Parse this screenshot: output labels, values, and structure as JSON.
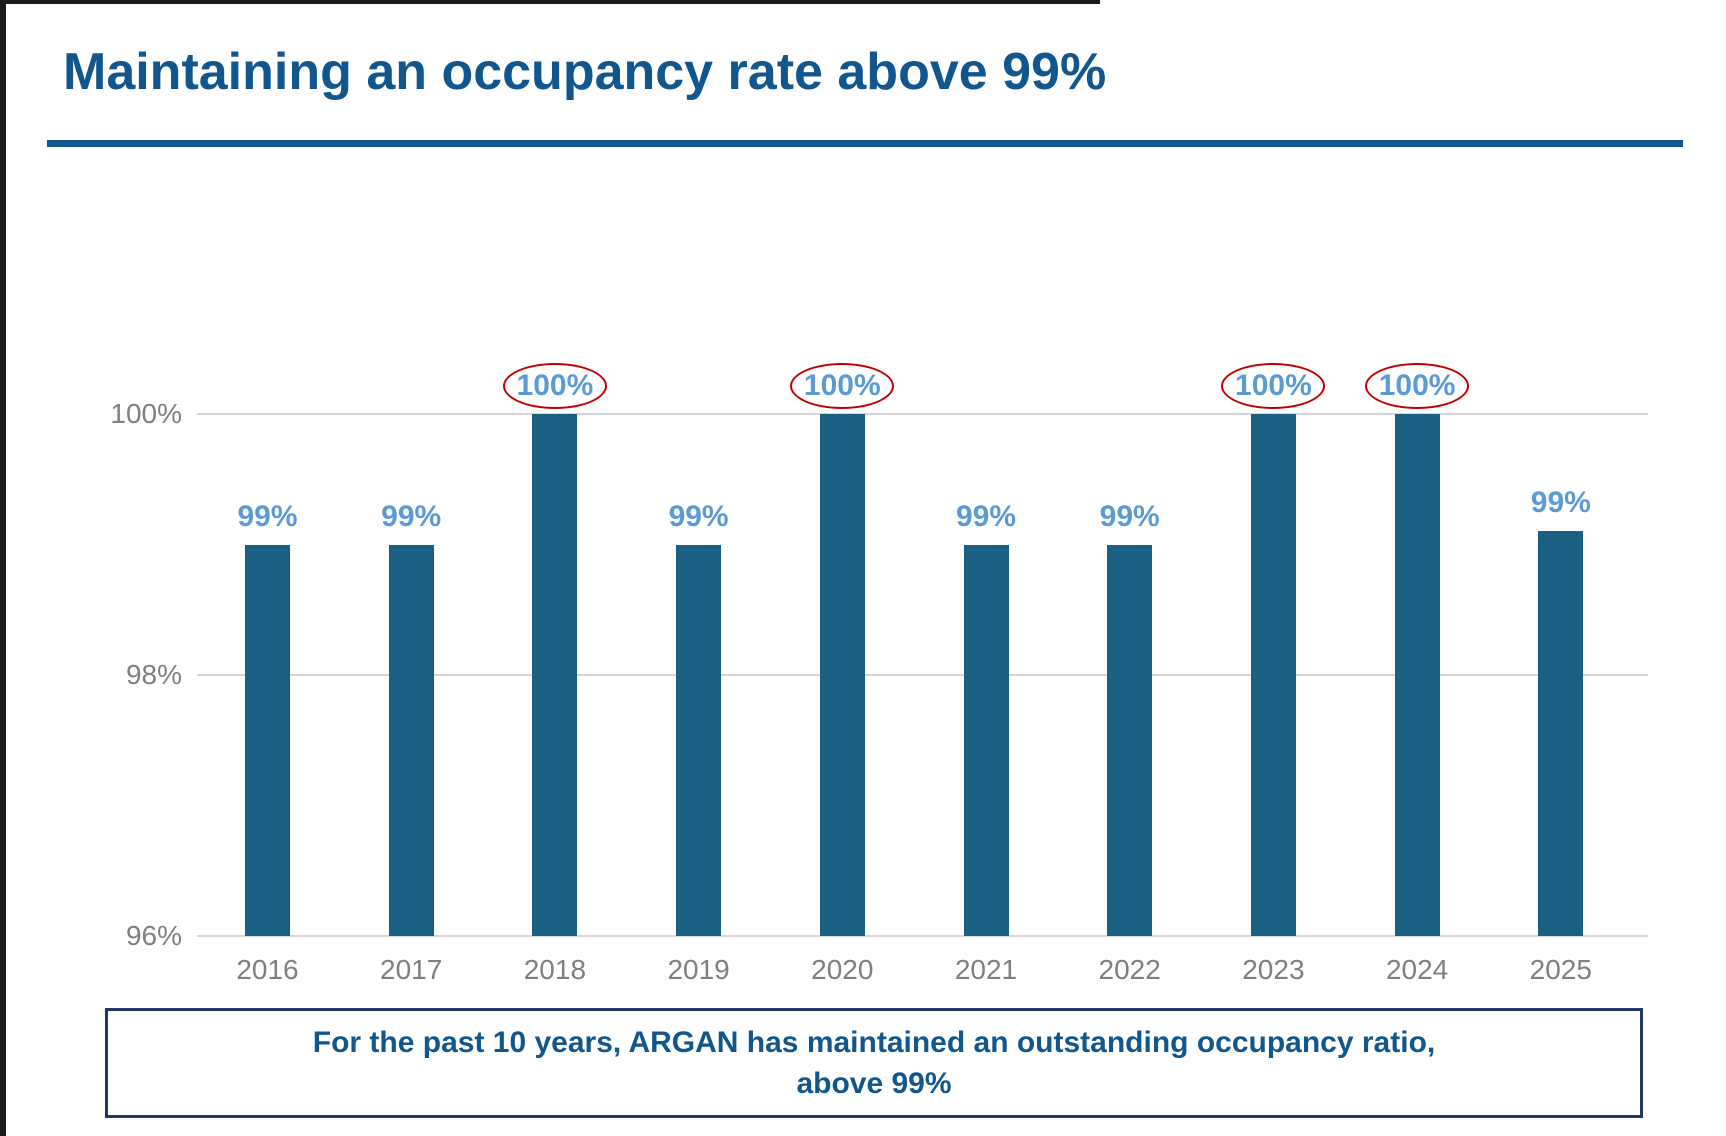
{
  "page": {
    "background": "#ffffff",
    "edge_color": "#1a1a1a"
  },
  "header": {
    "title": "Maintaining an occupancy rate above 99%",
    "text_color": "#11568C",
    "rule_color": "#11568C"
  },
  "chart_data": {
    "type": "bar",
    "categories": [
      "2016",
      "2017",
      "2018",
      "2019",
      "2020",
      "2021",
      "2022",
      "2023",
      "2024",
      "2025"
    ],
    "values": [
      99,
      99,
      100,
      99,
      100,
      99,
      99,
      100,
      100,
      99
    ],
    "labels": [
      "99%",
      "99%",
      "100%",
      "99%",
      "100%",
      "99%",
      "99%",
      "100%",
      "100%",
      "99%"
    ],
    "plot_values": [
      99,
      99,
      100,
      99,
      100,
      99,
      99,
      100,
      100,
      99.1
    ],
    "circled": [
      false,
      false,
      true,
      false,
      true,
      false,
      false,
      true,
      true,
      false
    ],
    "y_ticks": [
      {
        "value": 100,
        "label": "100%"
      },
      {
        "value": 98,
        "label": "98%"
      },
      {
        "value": 96,
        "label": "96%"
      }
    ],
    "ylim": [
      96,
      100.5
    ],
    "grid": true,
    "legend": false,
    "bar_color": "#196083",
    "value_label_color": "#5B9BD5",
    "circle_color": "#C00000",
    "grid_color": "#D6D6D6",
    "axis_text_color": "#7F7F7F"
  },
  "caption": {
    "line1": "For the past 10 years, ARGAN has maintained an outstanding occupancy ratio,",
    "line2": "above 99%",
    "text_color": "#11568C",
    "border_color": "#1F3864"
  }
}
